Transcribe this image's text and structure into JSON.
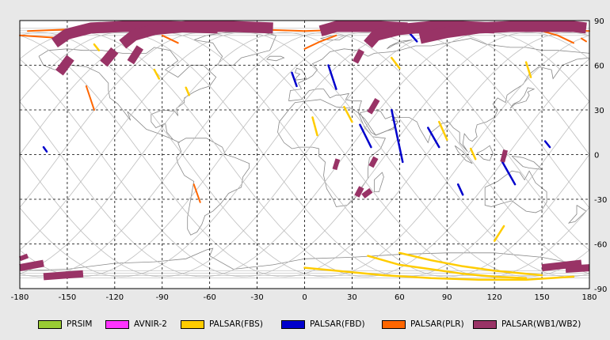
{
  "map": {
    "x_ticks": [
      "-180",
      "-150",
      "-120",
      "-90",
      "-60",
      "-30",
      "0",
      "30",
      "60",
      "90",
      "120",
      "150",
      "180"
    ],
    "y_ticks": [
      "90",
      "60",
      "30",
      "0",
      "-30",
      "-60",
      "-90"
    ],
    "lon_range": [
      -180,
      180
    ],
    "lat_range": [
      -90,
      90
    ],
    "grid": "dashed",
    "background": "#ffffff",
    "land_outline_color": "#888888",
    "orbit_track_color": "#bbbbbb"
  },
  "legend": [
    {
      "label": "PRSIM",
      "color": "#99cc33"
    },
    {
      "label": "AVNIR-2",
      "color": "#ff33ff"
    },
    {
      "label": "PALSAR(FBS)",
      "color": "#ffcc00"
    },
    {
      "label": "PALSAR(FBD)",
      "color": "#0000cc"
    },
    {
      "label": "PALSAR(PLR)",
      "color": "#ff6600"
    },
    {
      "label": "PALSAR(WB1/WB2)",
      "color": "#993366"
    }
  ],
  "observations": {
    "wb": [
      {
        "lon": [
          -158,
          -150,
          -135,
          -115,
          -85,
          -55
        ],
        "lat": [
          75,
          81,
          85,
          86,
          86,
          85
        ],
        "width": 14
      },
      {
        "lon": [
          -115,
          -108,
          -95,
          -75,
          -45,
          -20
        ],
        "lat": [
          74,
          80,
          84,
          86,
          86,
          85
        ],
        "width": 14
      },
      {
        "lon": [
          -155,
          -148
        ],
        "lat": [
          55,
          65
        ],
        "width": 12
      },
      {
        "lon": [
          -127,
          -120
        ],
        "lat": [
          61,
          70
        ],
        "width": 12
      },
      {
        "lon": [
          -110,
          -104
        ],
        "lat": [
          62,
          72
        ],
        "width": 10
      },
      {
        "lon": [
          10,
          20,
          32,
          48,
          65
        ],
        "lat": [
          83,
          86,
          86,
          86,
          85
        ],
        "width": 14
      },
      {
        "lon": [
          40,
          45,
          60,
          80,
          100,
          120
        ],
        "lat": [
          74,
          80,
          84,
          86,
          86,
          85
        ],
        "width": 14
      },
      {
        "lon": [
          73,
          90,
          110,
          130,
          150,
          170,
          178
        ],
        "lat": [
          78,
          82,
          85,
          86,
          86,
          86,
          85
        ],
        "width": 14
      },
      {
        "lon": [
          32,
          36
        ],
        "lat": [
          62,
          70
        ],
        "width": 8
      },
      {
        "lon": [
          41,
          46
        ],
        "lat": [
          28,
          37
        ],
        "width": 7
      },
      {
        "lon": [
          42,
          45
        ],
        "lat": [
          -8,
          -2
        ],
        "width": 7
      },
      {
        "lon": [
          33,
          36
        ],
        "lat": [
          -28,
          -22
        ],
        "width": 7
      },
      {
        "lon": [
          37,
          42
        ],
        "lat": [
          -28,
          -24
        ],
        "width": 7
      },
      {
        "lon": [
          19,
          21
        ],
        "lat": [
          -10,
          -3
        ],
        "width": 6
      },
      {
        "lon": [
          -180,
          -165
        ],
        "lat": [
          -76,
          -73
        ],
        "width": 9
      },
      {
        "lon": [
          -165,
          -140
        ],
        "lat": [
          -82,
          -80
        ],
        "width": 9
      },
      {
        "lon": [
          -180,
          -175
        ],
        "lat": [
          -70,
          -68
        ],
        "width": 6
      },
      {
        "lon": [
          150,
          175
        ],
        "lat": [
          -76,
          -73
        ],
        "width": 9
      },
      {
        "lon": [
          165,
          180
        ],
        "lat": [
          -77,
          -76
        ],
        "width": 9
      },
      {
        "lon": [
          125,
          127
        ],
        "lat": [
          -5,
          3
        ],
        "width": 6
      }
    ],
    "fbd": [
      {
        "lon": [
          -8,
          -5
        ],
        "lat": [
          55,
          46
        ]
      },
      {
        "lon": [
          15,
          20
        ],
        "lat": [
          60,
          44
        ]
      },
      {
        "lon": [
          35,
          42
        ],
        "lat": [
          20,
          5
        ]
      },
      {
        "lon": [
          55,
          62
        ],
        "lat": [
          30,
          -5
        ]
      },
      {
        "lon": [
          78,
          85
        ],
        "lat": [
          18,
          5
        ]
      },
      {
        "lon": [
          125,
          133
        ],
        "lat": [
          -5,
          -20
        ]
      },
      {
        "lon": [
          97,
          100
        ],
        "lat": [
          -20,
          -27
        ]
      },
      {
        "lon": [
          -165,
          -163
        ],
        "lat": [
          5,
          2
        ]
      },
      {
        "lon": [
          152,
          155
        ],
        "lat": [
          9,
          5
        ]
      },
      {
        "lon": [
          66,
          71
        ],
        "lat": [
          82,
          76
        ]
      }
    ],
    "fbs": [
      {
        "lon": [
          -133,
          -130
        ],
        "lat": [
          74,
          70
        ]
      },
      {
        "lon": [
          -95,
          -92
        ],
        "lat": [
          57,
          51
        ]
      },
      {
        "lon": [
          -75,
          -73
        ],
        "lat": [
          45,
          40
        ]
      },
      {
        "lon": [
          5,
          8
        ],
        "lat": [
          25,
          13
        ]
      },
      {
        "lon": [
          25,
          30
        ],
        "lat": [
          32,
          22
        ]
      },
      {
        "lon": [
          55,
          60
        ],
        "lat": [
          65,
          58
        ]
      },
      {
        "lon": [
          85,
          90
        ],
        "lat": [
          22,
          10
        ]
      },
      {
        "lon": [
          105,
          108
        ],
        "lat": [
          4,
          -3
        ]
      },
      {
        "lon": [
          140,
          143
        ],
        "lat": [
          62,
          52
        ]
      },
      {
        "lon": [
          120,
          126
        ],
        "lat": [
          -58,
          -48
        ]
      },
      {
        "lon": [
          0,
          20,
          50,
          80,
          110,
          140,
          170
        ],
        "lat": [
          -76,
          -78,
          -81,
          -83,
          -84,
          -84,
          -82
        ]
      },
      {
        "lon": [
          40,
          60,
          80,
          100,
          120,
          140
        ],
        "lat": [
          -68,
          -74,
          -77,
          -80,
          -82,
          -83
        ]
      },
      {
        "lon": [
          60,
          80,
          100,
          120,
          140,
          150
        ],
        "lat": [
          -66,
          -71,
          -75,
          -78,
          -80,
          -81
        ]
      }
    ],
    "plr": [
      {
        "lon": [
          -175,
          -150,
          -120,
          -90,
          -60,
          -30,
          0,
          30,
          60,
          90,
          120,
          150,
          180
        ],
        "lat": [
          83,
          84,
          85,
          85,
          84,
          84,
          83,
          84,
          85,
          85,
          84,
          84,
          83
        ]
      },
      {
        "lon": [
          -180,
          -165,
          -150
        ],
        "lat": [
          80,
          79,
          78
        ]
      },
      {
        "lon": [
          -138,
          -133
        ],
        "lat": [
          46,
          30
        ]
      },
      {
        "lon": [
          -70,
          -66
        ],
        "lat": [
          -20,
          -32
        ]
      },
      {
        "lon": [
          -90,
          -80
        ],
        "lat": [
          80,
          75
        ]
      },
      {
        "lon": [
          0,
          10,
          20
        ],
        "lat": [
          71,
          76,
          80
        ]
      },
      {
        "lon": [
          150,
          160,
          170
        ],
        "lat": [
          83,
          80,
          75
        ]
      },
      {
        "lon": [
          175,
          178
        ],
        "lat": [
          78,
          76
        ]
      }
    ]
  }
}
